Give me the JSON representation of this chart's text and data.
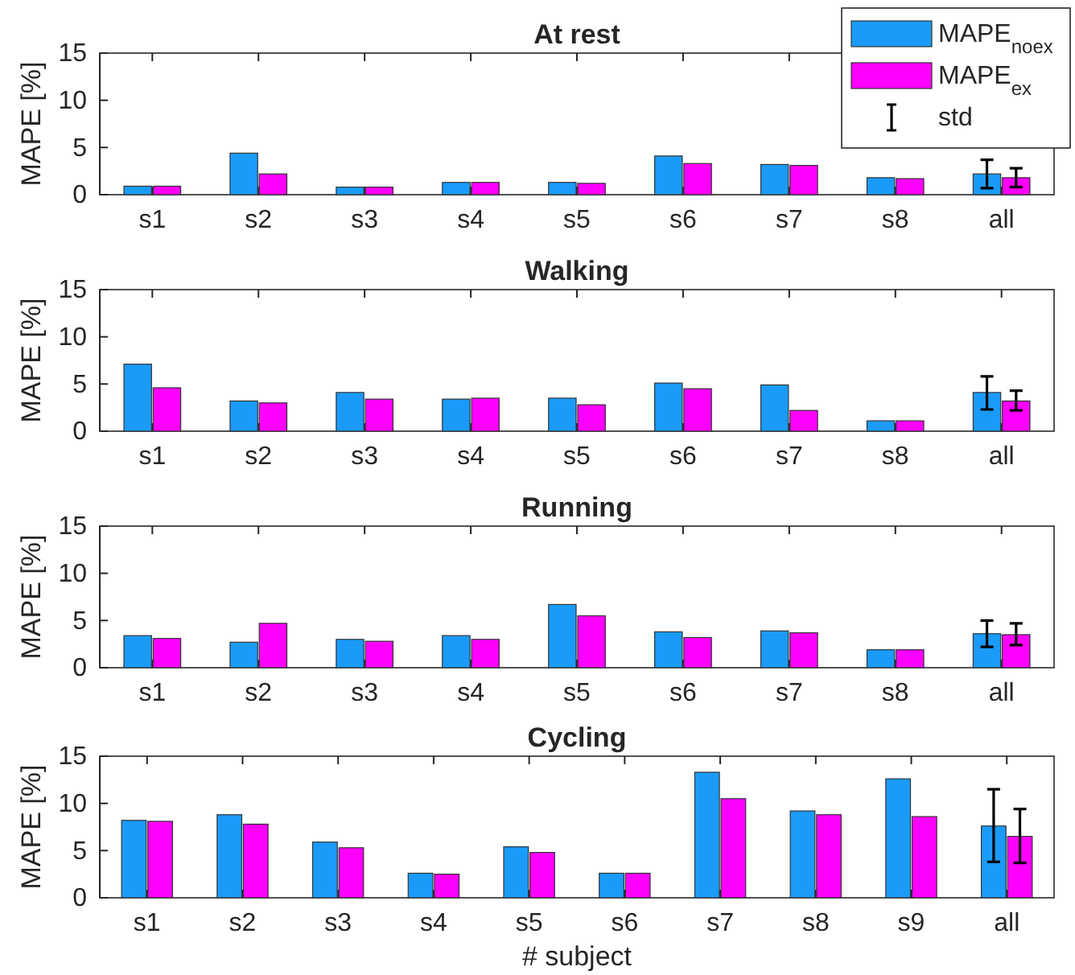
{
  "chart_data": [
    {
      "type": "bar",
      "title": "At rest",
      "ylabel": "MAPE [%]",
      "categories": [
        "s1",
        "s2",
        "s3",
        "s4",
        "s5",
        "s6",
        "s7",
        "s8",
        "all"
      ],
      "ylim": [
        0,
        15
      ],
      "yticks": [
        0,
        5,
        10,
        15
      ],
      "grid": false,
      "legend": "top right",
      "annotations": [
        "std"
      ],
      "series": [
        {
          "name": "MAPE$_{noex}$",
          "color": "#1a9bfa",
          "values": [
            0.9,
            4.4,
            0.8,
            1.3,
            1.3,
            4.1,
            3.2,
            1.8,
            2.2
          ],
          "errors": [
            null,
            null,
            null,
            null,
            null,
            null,
            null,
            null,
            [
              0.7,
              3.7
            ]
          ]
        },
        {
          "name": "MAPE$_{ex}$",
          "color": "#ff00ff",
          "values": [
            0.9,
            2.2,
            0.8,
            1.3,
            1.2,
            3.3,
            3.1,
            1.7,
            1.8
          ],
          "errors": [
            null,
            null,
            null,
            null,
            null,
            null,
            null,
            null,
            [
              0.8,
              2.8
            ]
          ]
        }
      ]
    },
    {
      "type": "bar",
      "title": "Walking",
      "ylabel": "MAPE [%]",
      "categories": [
        "s1",
        "s2",
        "s3",
        "s4",
        "s5",
        "s6",
        "s7",
        "s8",
        "all"
      ],
      "ylim": [
        0,
        15
      ],
      "yticks": [
        0,
        5,
        10,
        15
      ],
      "grid": false,
      "legend": false,
      "series": [
        {
          "color": "#1a9bfa",
          "values": [
            7.1,
            3.2,
            4.1,
            3.4,
            3.5,
            5.1,
            4.9,
            1.1,
            4.1
          ],
          "errors": [
            null,
            null,
            null,
            null,
            null,
            null,
            null,
            null,
            [
              2.3,
              5.8
            ]
          ]
        },
        {
          "color": "#ff00ff",
          "values": [
            4.6,
            3.0,
            3.4,
            3.5,
            2.8,
            4.5,
            2.2,
            1.1,
            3.2
          ],
          "errors": [
            null,
            null,
            null,
            null,
            null,
            null,
            null,
            null,
            [
              2.2,
              4.3
            ]
          ]
        }
      ]
    },
    {
      "type": "bar",
      "title": "Running",
      "ylabel": "MAPE [%]",
      "categories": [
        "s1",
        "s2",
        "s3",
        "s4",
        "s5",
        "s6",
        "s7",
        "s8",
        "all"
      ],
      "ylim": [
        0,
        15
      ],
      "yticks": [
        0,
        5,
        10,
        15
      ],
      "grid": false,
      "legend": false,
      "series": [
        {
          "color": "#1a9bfa",
          "values": [
            3.4,
            2.7,
            3.0,
            3.4,
            6.7,
            3.8,
            3.9,
            1.9,
            3.6
          ],
          "errors": [
            null,
            null,
            null,
            null,
            null,
            null,
            null,
            null,
            [
              2.2,
              5.0
            ]
          ]
        },
        {
          "color": "#ff00ff",
          "values": [
            3.1,
            4.7,
            2.8,
            3.0,
            5.5,
            3.2,
            3.7,
            1.9,
            3.5
          ],
          "errors": [
            null,
            null,
            null,
            null,
            null,
            null,
            null,
            null,
            [
              2.4,
              4.7
            ]
          ]
        }
      ]
    },
    {
      "type": "bar",
      "title": "Cycling",
      "ylabel": "MAPE [%]",
      "xlabel": "# subject",
      "categories": [
        "s1",
        "s2",
        "s3",
        "s4",
        "s5",
        "s6",
        "s7",
        "s8",
        "s9",
        "all"
      ],
      "ylim": [
        0,
        15
      ],
      "yticks": [
        0,
        5,
        10,
        15
      ],
      "grid": false,
      "legend": false,
      "series": [
        {
          "color": "#1a9bfa",
          "values": [
            8.2,
            8.8,
            5.9,
            2.6,
            5.4,
            2.6,
            13.3,
            9.2,
            12.6,
            7.6
          ],
          "errors": [
            null,
            null,
            null,
            null,
            null,
            null,
            null,
            null,
            null,
            [
              3.8,
              11.5
            ]
          ]
        },
        {
          "color": "#ff00ff",
          "values": [
            8.1,
            7.8,
            5.3,
            2.5,
            4.8,
            2.6,
            10.5,
            8.8,
            8.6,
            6.5
          ],
          "errors": [
            null,
            null,
            null,
            null,
            null,
            null,
            null,
            null,
            null,
            [
              3.7,
              9.4
            ]
          ]
        }
      ]
    }
  ]
}
